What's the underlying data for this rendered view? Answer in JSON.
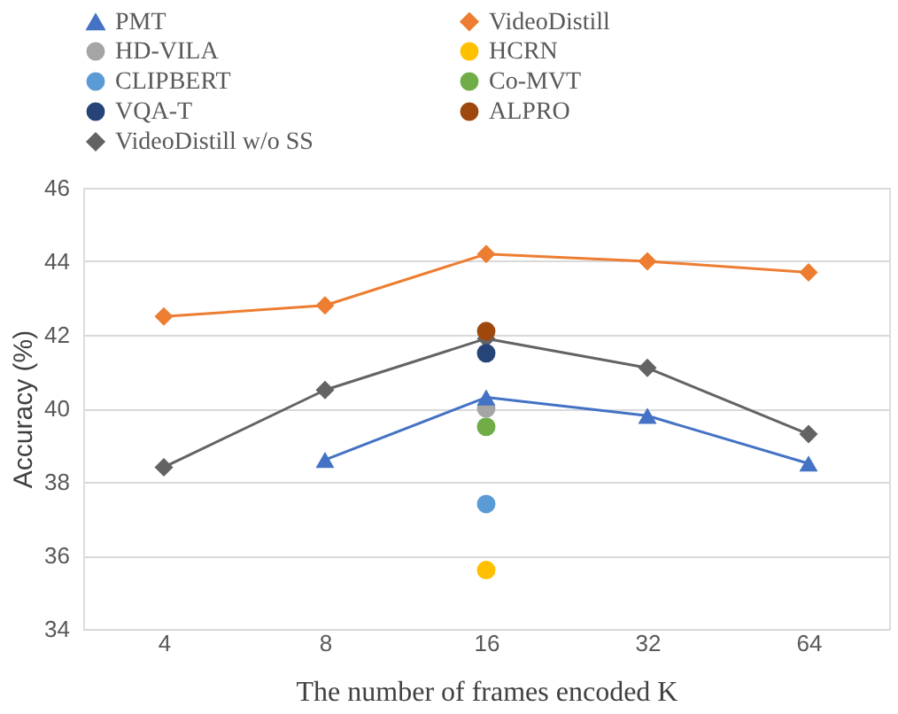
{
  "chart_data": {
    "type": "line",
    "xlabel": "The number of frames encoded K",
    "ylabel": "Accuracy (%)",
    "categories": [
      "4",
      "8",
      "16",
      "32",
      "64"
    ],
    "series": [
      {
        "name": "PMT",
        "color": "#4472c4",
        "marker": "triangle",
        "values": [
          null,
          38.6,
          40.3,
          39.8,
          38.5
        ]
      },
      {
        "name": "VideoDistill",
        "color": "#ed7d31",
        "marker": "diamond",
        "values": [
          42.5,
          42.8,
          44.2,
          44.0,
          43.7
        ]
      },
      {
        "name": "HD-VILA",
        "color": "#a5a5a5",
        "marker": "circle",
        "values": [
          null,
          null,
          40.0,
          null,
          null
        ]
      },
      {
        "name": "HCRN",
        "color": "#ffc000",
        "marker": "circle",
        "values": [
          null,
          null,
          35.6,
          null,
          null
        ]
      },
      {
        "name": "CLIPBERT",
        "color": "#5b9bd5",
        "marker": "circle",
        "values": [
          null,
          null,
          37.4,
          null,
          null
        ]
      },
      {
        "name": "Co-MVT",
        "color": "#70ad47",
        "marker": "circle",
        "values": [
          null,
          null,
          39.5,
          null,
          null
        ]
      },
      {
        "name": "VQA-T",
        "color": "#264478",
        "marker": "circle",
        "values": [
          null,
          null,
          41.5,
          null,
          null
        ]
      },
      {
        "name": "ALPRO",
        "color": "#9e480e",
        "marker": "circle",
        "values": [
          null,
          null,
          42.1,
          null,
          null
        ]
      },
      {
        "name": "VideoDistill w/o SS",
        "color": "#636363",
        "marker": "diamond",
        "values": [
          38.4,
          40.5,
          41.9,
          41.1,
          39.3
        ]
      }
    ],
    "ylim": [
      34,
      46
    ],
    "yticks": [
      34,
      36,
      38,
      40,
      42,
      44,
      46
    ],
    "grid": "y",
    "legend": "top"
  }
}
